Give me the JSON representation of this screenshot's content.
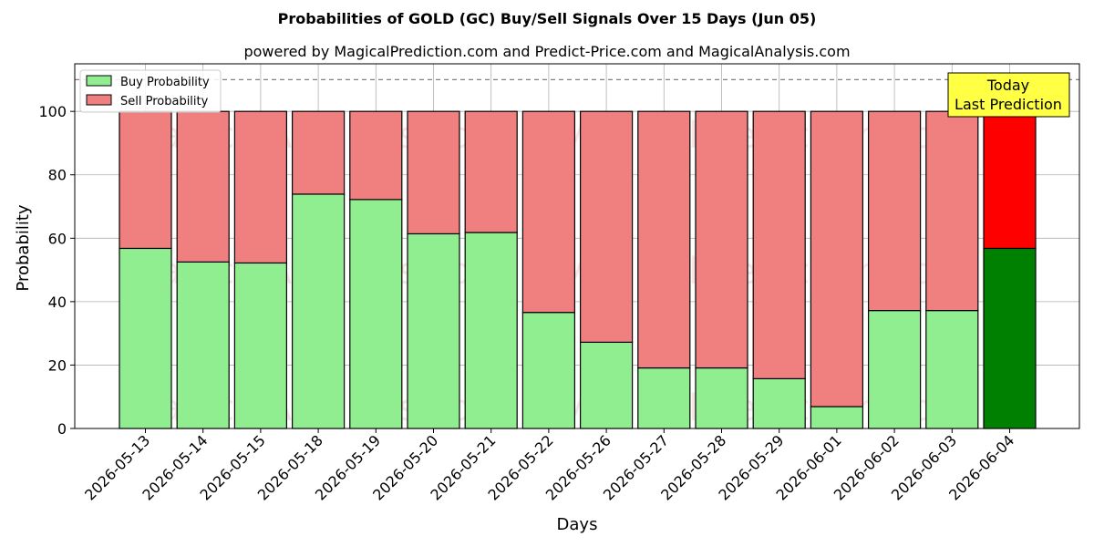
{
  "chart_data": {
    "type": "bar",
    "stacked": true,
    "title": "Probabilities of GOLD (GC) Buy/Sell Signals Over 15 Days (Jun 05)",
    "subtitle": "powered by MagicalPrediction.com and Predict-Price.com and MagicalAnalysis.com",
    "xlabel": "Days",
    "ylabel": "Probability",
    "ylim": [
      0,
      115
    ],
    "yticks": [
      0,
      20,
      40,
      60,
      80,
      100
    ],
    "reference_line": 110,
    "grid": true,
    "legend_position": "top-left",
    "categories": [
      "2026-05-13",
      "2026-05-14",
      "2026-05-15",
      "2026-05-18",
      "2026-05-19",
      "2026-05-20",
      "2026-05-21",
      "2026-05-22",
      "2026-05-26",
      "2026-05-27",
      "2026-05-28",
      "2026-05-29",
      "2026-06-01",
      "2026-06-02",
      "2026-06-03",
      "2026-06-04"
    ],
    "series": [
      {
        "name": "Buy Probability",
        "color": "#90ee90",
        "highlight_color": "#008000",
        "values": [
          56.8,
          52.5,
          52.2,
          73.9,
          72.2,
          61.4,
          61.8,
          36.6,
          27.2,
          19.1,
          19.1,
          15.7,
          6.9,
          37.2,
          37.2,
          56.8
        ]
      },
      {
        "name": "Sell Probability",
        "color": "#f08080",
        "highlight_color": "#ff0000",
        "values": [
          43.2,
          47.5,
          47.8,
          26.1,
          27.8,
          38.6,
          38.2,
          63.4,
          72.8,
          80.9,
          80.9,
          84.3,
          93.1,
          62.8,
          62.8,
          43.2
        ]
      }
    ],
    "annotation": {
      "lines": [
        "Today",
        "Last Prediction"
      ],
      "background": "#ffff44"
    },
    "watermarks": [
      "MagicalAnalysis.com",
      "MagicalPrediction.com"
    ]
  }
}
